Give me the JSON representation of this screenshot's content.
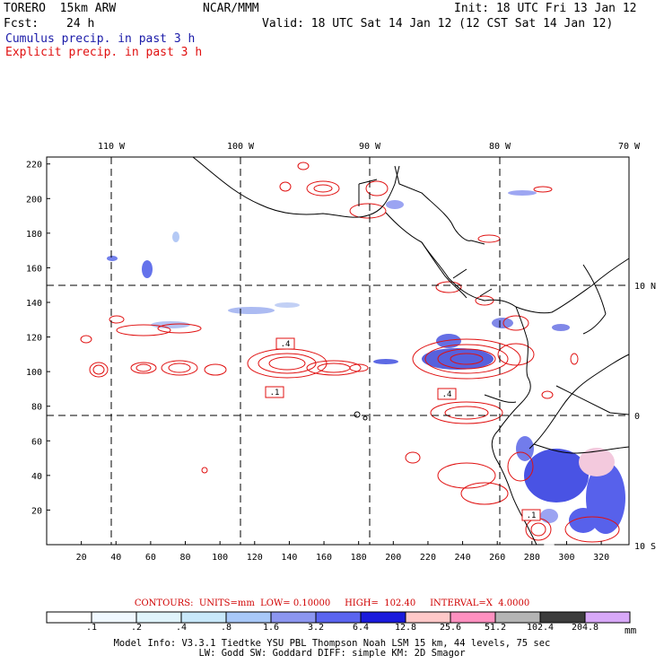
{
  "header": {
    "model_name": "TORERO  15km ARW",
    "org": "NCAR/MMM",
    "forecast_label": "Fcst:",
    "forecast_hours": "24 h",
    "init": "Init: 18 UTC Fri 13 Jan 12",
    "valid": "Valid: 18 UTC Sat 14 Jan 12 (12 CST Sat 14 Jan 12)",
    "field_cumulus": "Cumulus precip. in past 3 h",
    "field_explicit": "Explicit precip. in past 3 h"
  },
  "map": {
    "lon_labels": [
      "110 W",
      "100 W",
      "90 W",
      "80 W",
      "70 W"
    ],
    "lat_labels": [
      "10 N",
      "0",
      "10 S"
    ],
    "x_ticks": [
      "20",
      "40",
      "60",
      "80",
      "100",
      "120",
      "140",
      "160",
      "180",
      "200",
      "220",
      "240",
      "260",
      "280",
      "300",
      "320"
    ],
    "y_ticks": [
      "20",
      "40",
      "60",
      "80",
      "100",
      "120",
      "140",
      "160",
      "180",
      "200",
      "220"
    ],
    "contour_labels": [
      ".4",
      ".1",
      ".4",
      ".1"
    ],
    "colors": {
      "cumulus": "#3030e0",
      "explicit_contour": "#e01010",
      "coast": "#000000"
    }
  },
  "contours_info": {
    "text": "CONTOURS:  UNITS=mm  LOW= 0.10000     HIGH=  102.40     INTERVAL=X  4.0000"
  },
  "colorbar": {
    "labels": [
      ".1",
      ".2",
      ".4",
      ".8",
      "1.6",
      "3.2",
      "6.4",
      "12.8",
      "25.6",
      "51.2",
      "102.4",
      "204.8"
    ],
    "unit": "mm",
    "colors": [
      "#ffffff",
      "#f0f8ff",
      "#e0f4fc",
      "#c8e8fa",
      "#a8c8f8",
      "#8c96f0",
      "#5a64f0",
      "#1a1adc",
      "#ffc8c8",
      "#ff90c0",
      "#b4b4b4",
      "#3c3c3c",
      "#d8a8f8"
    ]
  },
  "model_info": {
    "line1": "Model Info: V3.3.1    Tiedtke YSU PBL  Thompson     Noah LSM  15 km,   44 levels,   75 sec",
    "line2": "LW: Godd SW: Goddard DIFF: simple KM: 2D Smagor"
  }
}
